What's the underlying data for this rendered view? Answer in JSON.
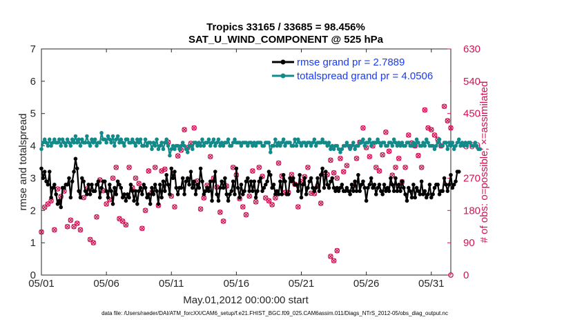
{
  "chart_data": {
    "type": "line",
    "title_line1": "Tropics 33165 / 33685 = 98.456%",
    "title_line2": "SAT_U_WIND_COMPONENT @ 525 hPa",
    "xlabel": "May.01,2012 00:00:00 start",
    "ylabel_left": "rmse and totalspread",
    "ylabel_right": "# of obs: o=possible; ×=assimilated",
    "footnote": "data file: /Users/raeder/DAI/ATM_forcXX/CAM6_setup/f.e21.FHIST_BGC.f09_025.CAM6assim.011/Diags_NTrS_2012-05/obs_diag_output.nc",
    "x_range_days": [
      0,
      31.5
    ],
    "x_ticks": [
      {
        "day": 0,
        "label": "05/01"
      },
      {
        "day": 5,
        "label": "05/06"
      },
      {
        "day": 10,
        "label": "05/11"
      },
      {
        "day": 15,
        "label": "05/16"
      },
      {
        "day": 20,
        "label": "05/21"
      },
      {
        "day": 25,
        "label": "05/26"
      },
      {
        "day": 30,
        "label": "05/31"
      }
    ],
    "ylim_left": [
      0,
      7
    ],
    "yticks_left": [
      "0",
      "1",
      "2",
      "3",
      "4",
      "5",
      "6",
      "7"
    ],
    "ylim_right": [
      0,
      630
    ],
    "yticks_right": [
      "0",
      "90",
      "180",
      "270",
      "360",
      "450",
      "540",
      "630"
    ],
    "step_days": 0.125,
    "series": [
      {
        "name": "rmse",
        "legend": "rmse grand pr = 2.7889",
        "color": "#000000",
        "values": [
          3.3,
          3.0,
          3.2,
          2.9,
          2.8,
          3.2,
          2.4,
          2.7,
          2.8,
          2.5,
          2.2,
          2.3,
          2.1,
          2.7,
          2.7,
          2.8,
          2.8,
          3.0,
          2.4,
          2.9,
          3.2,
          3.6,
          3.3,
          2.6,
          2.4,
          3.0,
          2.9,
          2.6,
          2.5,
          2.8,
          2.5,
          2.8,
          2.6,
          2.6,
          2.8,
          2.9,
          2.4,
          2.7,
          2.9,
          2.9,
          2.6,
          2.4,
          2.8,
          2.6,
          2.2,
          2.7,
          2.5,
          2.9,
          2.8,
          2.7,
          2.4,
          2.5,
          2.3,
          2.5,
          2.4,
          2.8,
          2.6,
          2.3,
          2.6,
          2.2,
          2.6,
          2.7,
          2.5,
          2.8,
          2.7,
          2.4,
          2.5,
          2.2,
          2.7,
          2.5,
          2.8,
          2.6,
          2.2,
          2.8,
          2.4,
          2.9,
          2.6,
          3.1,
          2.8,
          2.5,
          3.3,
          3.0,
          3.2,
          2.7,
          2.5,
          2.7,
          2.7,
          3.0,
          2.5,
          2.9,
          3.0,
          2.8,
          3.2,
          2.7,
          2.9,
          2.5,
          2.8,
          2.7,
          3.3,
          2.9,
          2.5,
          2.6,
          2.7,
          2.6,
          2.9,
          2.3,
          2.9,
          3.2,
          2.5,
          2.3,
          2.7,
          2.9,
          2.7,
          3.0,
          2.5,
          2.3,
          2.5,
          2.6,
          2.9,
          2.5,
          3.3,
          2.7,
          2.4,
          2.8,
          2.5,
          2.6,
          2.9,
          3.0,
          2.6,
          2.9,
          2.6,
          2.9,
          2.4,
          2.6,
          2.9,
          3.0,
          2.6,
          2.7,
          2.8,
          2.9,
          3.2,
          3.1,
          2.7,
          2.8,
          2.5,
          2.6,
          2.5,
          2.9,
          2.5,
          3.1,
          2.9,
          2.5,
          2.5,
          3.0,
          2.9,
          3.0,
          2.8,
          2.8,
          2.6,
          3.1,
          2.4,
          2.8,
          3.0,
          2.5,
          2.7,
          2.9,
          3.0,
          2.7,
          2.6,
          2.7,
          3.0,
          2.6,
          3.1,
          3.3,
          2.7,
          3.2,
          2.8,
          2.7,
          2.9,
          3.0,
          2.7,
          2.6,
          2.7,
          2.6,
          2.7,
          2.8,
          2.6,
          2.6,
          2.7,
          2.6,
          2.5,
          2.8,
          2.6,
          2.9,
          2.6,
          3.1,
          2.6,
          2.8,
          2.9,
          2.7,
          2.3,
          2.7,
          2.8,
          3.0,
          2.7,
          2.8,
          2.5,
          2.7,
          2.8,
          2.6,
          2.5,
          2.8,
          2.6,
          2.7,
          2.6,
          3.0,
          2.8,
          2.6,
          3.0,
          2.6,
          2.8,
          2.6,
          2.9,
          2.7,
          2.5,
          2.3,
          2.7,
          2.6,
          2.4,
          2.8,
          2.4,
          2.7,
          2.6,
          2.5,
          2.9,
          2.5,
          2.6,
          2.4,
          2.5,
          2.8,
          2.4,
          2.5,
          2.7,
          2.8,
          2.8,
          2.5,
          2.6,
          2.6,
          3.0,
          2.8,
          2.6,
          2.8,
          3.1,
          2.7,
          2.8,
          2.9,
          3.2,
          3.2
        ]
      },
      {
        "name": "totalspread",
        "legend": "totalspread grand pr = 4.0506",
        "color": "#138a8a",
        "values": [
          3.9,
          4.1,
          4.2,
          4.1,
          4.0,
          4.2,
          4.0,
          4.1,
          4.2,
          4.1,
          4.1,
          4.2,
          4.0,
          4.2,
          4.1,
          4.0,
          4.2,
          4.1,
          4.0,
          4.2,
          4.1,
          4.3,
          4.1,
          4.2,
          4.0,
          4.2,
          4.1,
          4.1,
          4.3,
          4.1,
          4.0,
          4.2,
          4.1,
          4.2,
          4.0,
          4.1,
          4.1,
          4.4,
          4.2,
          4.2,
          4.1,
          4.3,
          4.2,
          4.1,
          4.3,
          4.0,
          4.2,
          4.3,
          4.1,
          4.2,
          4.1,
          4.0,
          4.2,
          4.2,
          4.1,
          4.1,
          4.2,
          4.1,
          4.0,
          4.2,
          4.1,
          4.2,
          4.0,
          4.0,
          4.2,
          4.0,
          4.1,
          4.1,
          3.9,
          4.1,
          4.0,
          4.2,
          3.9,
          4.0,
          4.1,
          3.9,
          4.1,
          4.2,
          4.0,
          3.7,
          3.9,
          4.0,
          3.9,
          4.0,
          4.0,
          3.9,
          4.0,
          4.1,
          4.0,
          3.9,
          3.8,
          4.0,
          4.0,
          3.9,
          4.1,
          4.1,
          4.0,
          4.1,
          4.0,
          4.2,
          4.0,
          4.1,
          4.1,
          4.2,
          4.0,
          4.1,
          4.2,
          4.0,
          4.1,
          4.2,
          4.0,
          4.1,
          4.0,
          4.1,
          4.1,
          4.2,
          4.0,
          4.0,
          4.1,
          4.2,
          4.1,
          4.1,
          4.1,
          4.0,
          4.1,
          4.1,
          4.1,
          4.0,
          4.1,
          4.1,
          4.0,
          4.1,
          4.0,
          4.1,
          4.1,
          4.1,
          4.0,
          4.0,
          4.1,
          4.1,
          4.1,
          3.8,
          4.0,
          4.0,
          4.2,
          4.0,
          4.1,
          4.0,
          4.1,
          4.2,
          4.0,
          4.1,
          4.1,
          4.1,
          4.0,
          4.0,
          4.2,
          4.0,
          4.2,
          4.1,
          4.0,
          4.1,
          4.1,
          4.0,
          4.1,
          4.1,
          4.0,
          4.1,
          4.2,
          4.0,
          4.1,
          4.1,
          4.1,
          4.2,
          4.1,
          4.1,
          4.0,
          4.1,
          3.9,
          4.0,
          3.9,
          4.0,
          4.0,
          3.9,
          3.8,
          3.9,
          4.0,
          4.0,
          4.1,
          4.0,
          3.9,
          4.0,
          4.1,
          3.9,
          4.0,
          4.0,
          4.1,
          4.1,
          4.2,
          4.0,
          4.1,
          4.1,
          4.2,
          4.0,
          4.1,
          4.1,
          4.1,
          4.2,
          4.1,
          4.0,
          4.1,
          4.1,
          4.0,
          4.0,
          4.1,
          4.1,
          4.0,
          4.2,
          4.1,
          4.0,
          4.1,
          4.0,
          4.1,
          4.0,
          4.0,
          4.1,
          4.1,
          4.0,
          4.0,
          4.1,
          4.0,
          4.2,
          4.1,
          4.0,
          4.0,
          4.1,
          4.0,
          4.2,
          4.1,
          4.0,
          4.0,
          4.0,
          3.9,
          4.0,
          4.1,
          4.2,
          4.0,
          4.0,
          4.1,
          4.1,
          3.9,
          4.1,
          4.0,
          4.1,
          3.9,
          4.0,
          4.1,
          4.2,
          4.0,
          4.1,
          4.0,
          4.1,
          4.0,
          4.1,
          4.1,
          4.0,
          4.0,
          4.1,
          4.0,
          3.9,
          3.9
        ]
      }
    ],
    "obs_series": {
      "name": "# of obs (possible / assimilated)",
      "color": "#d11353",
      "points": [
        [
          0.0,
          120
        ],
        [
          0.25,
          189
        ],
        [
          0.5,
          198
        ],
        [
          0.75,
          207
        ],
        [
          1.0,
          126
        ],
        [
          1.25,
          240
        ],
        [
          1.5,
          219
        ],
        [
          1.75,
          234
        ],
        [
          2.0,
          135
        ],
        [
          2.25,
          153
        ],
        [
          2.5,
          135
        ],
        [
          2.75,
          144
        ],
        [
          3.0,
          126
        ],
        [
          3.25,
          216
        ],
        [
          3.5,
          240
        ],
        [
          3.75,
          99
        ],
        [
          4.0,
          90
        ],
        [
          4.25,
          162
        ],
        [
          4.5,
          265
        ],
        [
          4.75,
          235
        ],
        [
          5.0,
          198
        ],
        [
          5.25,
          210
        ],
        [
          5.5,
          270
        ],
        [
          5.75,
          300
        ],
        [
          6.0,
          157
        ],
        [
          6.25,
          150
        ],
        [
          6.5,
          140
        ],
        [
          6.75,
          300
        ],
        [
          7.0,
          243
        ],
        [
          7.25,
          270
        ],
        [
          7.5,
          255
        ],
        [
          7.75,
          130
        ],
        [
          8.0,
          180
        ],
        [
          8.25,
          290
        ],
        [
          8.5,
          230
        ],
        [
          8.75,
          300
        ],
        [
          9.0,
          194
        ],
        [
          9.25,
          290
        ],
        [
          9.5,
          295
        ],
        [
          9.75,
          370
        ],
        [
          10.0,
          220
        ],
        [
          10.25,
          190
        ],
        [
          10.5,
          332
        ],
        [
          10.75,
          348
        ],
        [
          11.0,
          405
        ],
        [
          11.25,
          355
        ],
        [
          11.5,
          367
        ],
        [
          11.75,
          410
        ],
        [
          12.0,
          262
        ],
        [
          12.25,
          184
        ],
        [
          12.5,
          215
        ],
        [
          12.75,
          250
        ],
        [
          13.0,
          330
        ],
        [
          13.25,
          270
        ],
        [
          13.5,
          245
        ],
        [
          13.75,
          175
        ],
        [
          14.0,
          150
        ],
        [
          14.25,
          248
        ],
        [
          14.75,
          300
        ],
        [
          15.0,
          279
        ],
        [
          15.25,
          213
        ],
        [
          15.5,
          190
        ],
        [
          15.75,
          168
        ],
        [
          16.0,
          220
        ],
        [
          16.25,
          290
        ],
        [
          16.5,
          204
        ],
        [
          16.75,
          300
        ],
        [
          17.0,
          275
        ],
        [
          17.25,
          215
        ],
        [
          17.5,
          207
        ],
        [
          17.75,
          196
        ],
        [
          18.0,
          215
        ],
        [
          18.25,
          312
        ],
        [
          18.5,
          276
        ],
        [
          18.75,
          230
        ],
        [
          19.0,
          230
        ],
        [
          19.25,
          280
        ],
        [
          19.5,
          253
        ],
        [
          19.75,
          190
        ],
        [
          20.0,
          260
        ],
        [
          20.25,
          274
        ],
        [
          20.5,
          300
        ],
        [
          20.75,
          228
        ],
        [
          21.0,
          227
        ],
        [
          21.25,
          248
        ],
        [
          21.5,
          200
        ],
        [
          21.75,
          280
        ],
        [
          22.0,
          280
        ],
        [
          22.25,
          320
        ],
        [
          22.5,
          285
        ],
        [
          22.75,
          270
        ],
        [
          23.0,
          325
        ],
        [
          23.25,
          288
        ],
        [
          23.5,
          305
        ],
        [
          23.75,
          358
        ],
        [
          24.0,
          250
        ],
        [
          24.25,
          325
        ],
        [
          24.5,
          370
        ],
        [
          24.75,
          410
        ],
        [
          25.0,
          355
        ],
        [
          25.25,
          330
        ],
        [
          25.5,
          360
        ],
        [
          25.75,
          300
        ],
        [
          26.0,
          290
        ],
        [
          26.25,
          335
        ],
        [
          26.5,
          398
        ],
        [
          26.75,
          345
        ],
        [
          27.0,
          278
        ],
        [
          27.25,
          300
        ],
        [
          27.5,
          325
        ],
        [
          27.75,
          260
        ],
        [
          28.0,
          300
        ],
        [
          28.25,
          390
        ],
        [
          28.5,
          368
        ],
        [
          28.75,
          360
        ],
        [
          29.0,
          333
        ],
        [
          29.25,
          300
        ],
        [
          29.5,
          460
        ],
        [
          29.75,
          410
        ],
        [
          30.0,
          405
        ],
        [
          30.25,
          390
        ],
        [
          30.5,
          378
        ],
        [
          30.75,
          360
        ],
        [
          31.0,
          470
        ],
        [
          31.25,
          430
        ],
        [
          31.5,
          410
        ]
      ],
      "low_cluster": [
        [
          22.25,
          52
        ],
        [
          22.5,
          40
        ],
        [
          22.75,
          68
        ]
      ]
    }
  }
}
